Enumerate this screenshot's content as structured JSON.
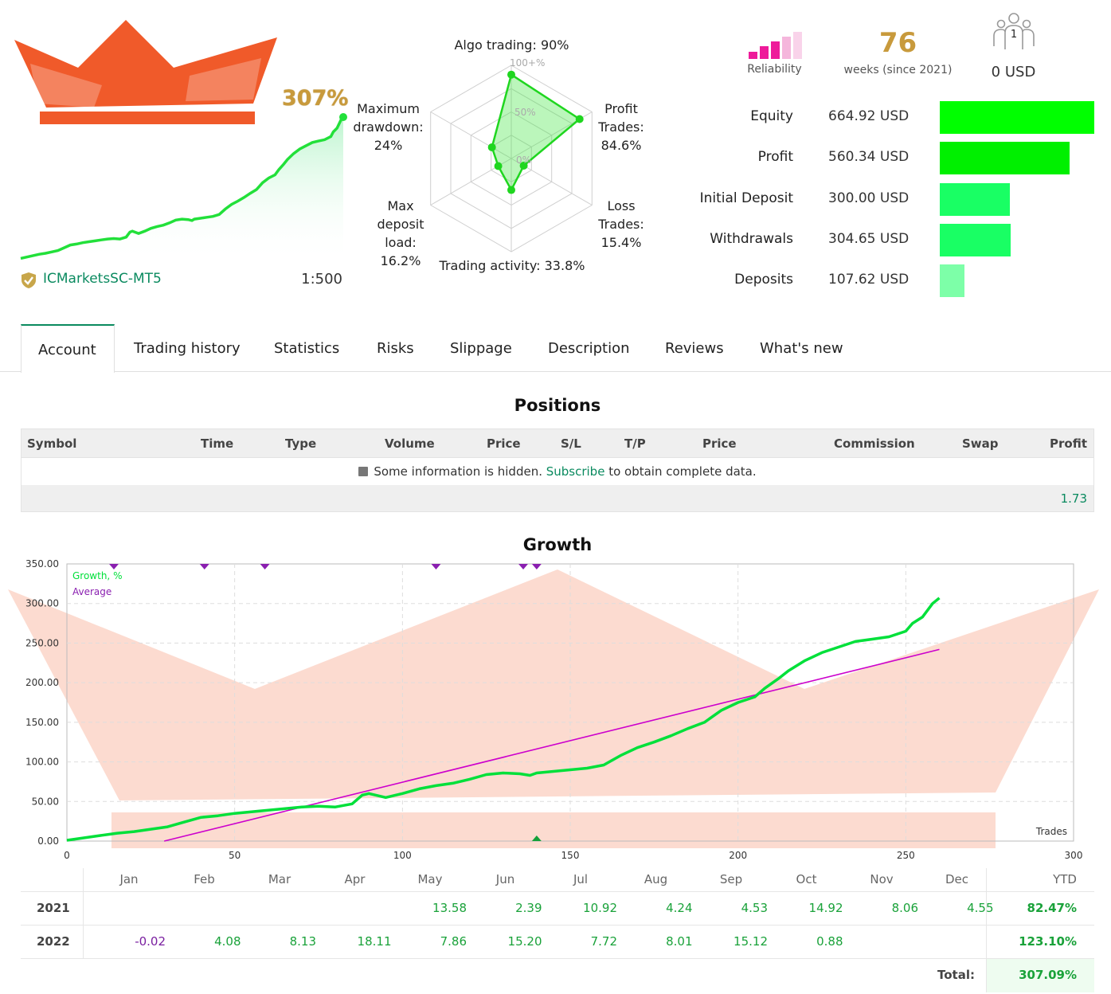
{
  "header": {
    "growth_percent": "307%",
    "broker": "ICMarketsSC-MT5",
    "leverage": "1:500",
    "reliability_label": "Reliability",
    "weeks_value": "76",
    "weeks_label": "weeks (since 2021)",
    "subscribers_count": "1",
    "subscribers_funds": "0 USD"
  },
  "radar": {
    "algo": "Algo trading: 90%",
    "algo_scale_100": "100+%",
    "scale_50": "50%",
    "scale_0": "0%",
    "profit_trades": [
      "Profit",
      "Trades:",
      "84.6%"
    ],
    "loss_trades": [
      "Loss",
      "Trades:",
      "15.4%"
    ],
    "activity": "Trading activity: 33.8%",
    "deposit_load": [
      "Max",
      "deposit",
      "load:",
      "16.2%"
    ],
    "drawdown": [
      "Maximum",
      "drawdown:",
      "24%"
    ],
    "values": [
      0.9,
      0.846,
      0.154,
      0.338,
      0.162,
      0.24
    ]
  },
  "financials": [
    {
      "label": "Equity",
      "value": "664.92 USD",
      "amount": 664.92,
      "color": "#00ff00"
    },
    {
      "label": "Profit",
      "value": "560.34 USD",
      "amount": 560.34,
      "color": "#00f000"
    },
    {
      "label": "Initial Deposit",
      "value": "300.00 USD",
      "amount": 300.0,
      "color": "#19ff64"
    },
    {
      "label": "Withdrawals",
      "value": "304.65 USD",
      "amount": 304.65,
      "color": "#19ff64"
    },
    {
      "label": "Deposits",
      "value": "107.62 USD",
      "amount": 107.62,
      "color": "#7dffa8"
    }
  ],
  "tabs": [
    "Account",
    "Trading history",
    "Statistics",
    "Risks",
    "Slippage",
    "Description",
    "Reviews",
    "What's new"
  ],
  "positions": {
    "title": "Positions",
    "columns": [
      "Symbol",
      "Time",
      "Type",
      "Volume",
      "Price",
      "S/L",
      "T/P",
      "Price",
      "Commission",
      "Swap",
      "Profit"
    ],
    "info_prefix": "Some information is hidden. ",
    "info_link": "Subscribe",
    "info_suffix": " to obtain complete data.",
    "total_profit": "1.73"
  },
  "growth": {
    "title": "Growth",
    "legend_growth": "Growth, %",
    "legend_average": "Average",
    "x_axis_label": "Trades",
    "colors": {
      "growth": "#00e03a",
      "average": "#cc00cc"
    }
  },
  "chart_data": {
    "type": "line",
    "title": "Growth",
    "xlabel": "Trades",
    "ylabel": "",
    "xlim": [
      0,
      300
    ],
    "ylim": [
      0,
      350
    ],
    "x_ticks": [
      "0",
      "50",
      "100",
      "150",
      "200",
      "250",
      "300"
    ],
    "y_ticks": [
      "0.00",
      "50.00",
      "100.00",
      "150.00",
      "200.00",
      "250.00",
      "300.00",
      "350.00"
    ],
    "series": [
      {
        "name": "Growth, %",
        "x": [
          0,
          5,
          10,
          15,
          20,
          25,
          30,
          35,
          40,
          45,
          50,
          55,
          60,
          65,
          70,
          75,
          80,
          85,
          88,
          90,
          95,
          100,
          105,
          110,
          115,
          120,
          125,
          130,
          135,
          138,
          140,
          145,
          150,
          155,
          160,
          165,
          170,
          175,
          180,
          185,
          190,
          195,
          200,
          205,
          208,
          212,
          215,
          220,
          225,
          230,
          235,
          240,
          245,
          250,
          252,
          255,
          258,
          260
        ],
        "y": [
          1,
          4,
          7,
          10,
          12,
          15,
          18,
          24,
          30,
          32,
          35,
          37,
          39,
          41,
          43,
          44,
          43,
          47,
          58,
          60,
          55,
          60,
          66,
          70,
          73,
          78,
          84,
          86,
          85,
          83,
          86,
          88,
          90,
          92,
          96,
          108,
          118,
          125,
          133,
          142,
          150,
          165,
          175,
          182,
          193,
          205,
          215,
          228,
          238,
          245,
          252,
          255,
          258,
          265,
          275,
          283,
          300,
          307
        ]
      },
      {
        "name": "Average",
        "x": [
          29,
          260
        ],
        "y": [
          0,
          242
        ]
      }
    ],
    "markers_top_x": [
      14,
      41,
      59,
      110,
      136,
      140
    ],
    "marker_bottom_x": [
      140
    ],
    "monthly": {
      "months": [
        "Jan",
        "Feb",
        "Mar",
        "Apr",
        "May",
        "Jun",
        "Jul",
        "Aug",
        "Sep",
        "Oct",
        "Nov",
        "Dec"
      ],
      "ytd_label": "YTD",
      "rows": [
        {
          "year": "2021",
          "values": [
            "",
            "",
            "",
            "",
            "13.58",
            "2.39",
            "10.92",
            "4.24",
            "4.53",
            "14.92",
            "8.06",
            "4.55"
          ],
          "ytd": "82.47%"
        },
        {
          "year": "2022",
          "values": [
            "-0.02",
            "4.08",
            "8.13",
            "18.11",
            "7.86",
            "15.20",
            "7.72",
            "8.01",
            "15.12",
            "0.88",
            "",
            ""
          ],
          "ytd": "123.10%"
        }
      ],
      "total_label": "Total:",
      "total_value": "307.09%"
    }
  }
}
